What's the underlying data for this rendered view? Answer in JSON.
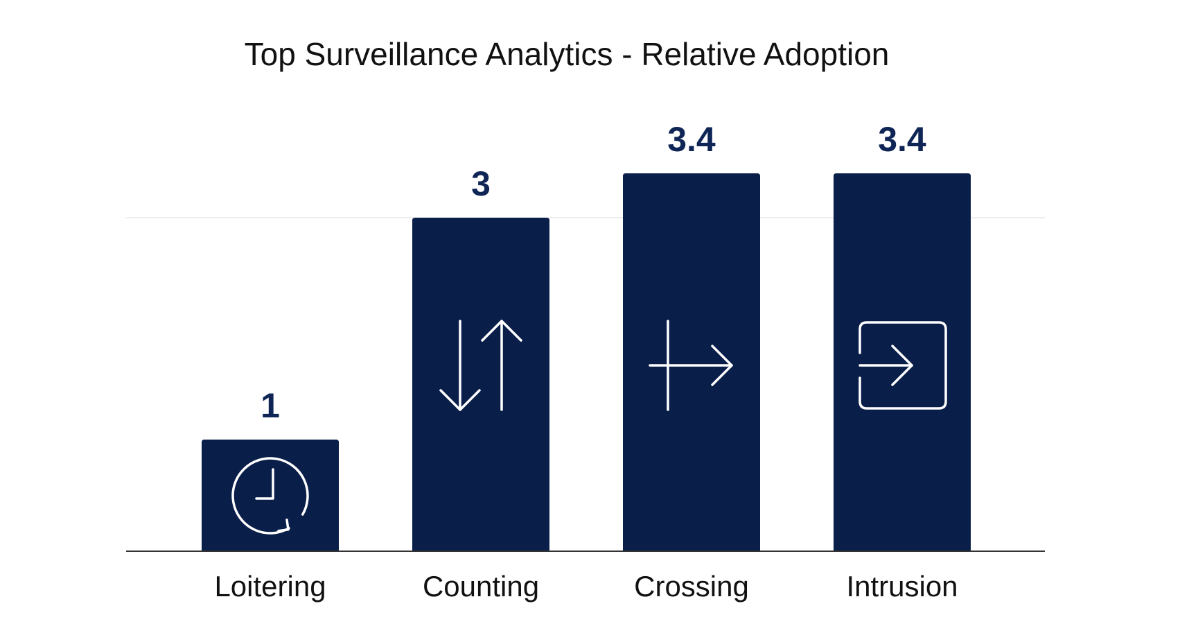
{
  "chart_data": {
    "type": "bar",
    "title": "Top Surveillance Analytics - Relative Adoption",
    "categories": [
      "Loitering",
      "Counting",
      "Crossing",
      "Intrusion"
    ],
    "values": [
      1,
      3,
      3.4,
      3.4
    ],
    "value_labels": [
      "1",
      "3",
      "3.4",
      "3.4"
    ],
    "icons": [
      "clock-rotate-icon",
      "up-down-arrows-icon",
      "line-crossing-icon",
      "enter-box-icon"
    ],
    "xlabel": "",
    "ylabel": "",
    "ylim": [
      0,
      3.4
    ],
    "gridlines": [
      3
    ],
    "colors": {
      "bar": "#0a1e4a",
      "value_label": "#0e2556",
      "axis": "#333333",
      "grid": "#e3e3e3",
      "icon": "#ffffff"
    }
  }
}
